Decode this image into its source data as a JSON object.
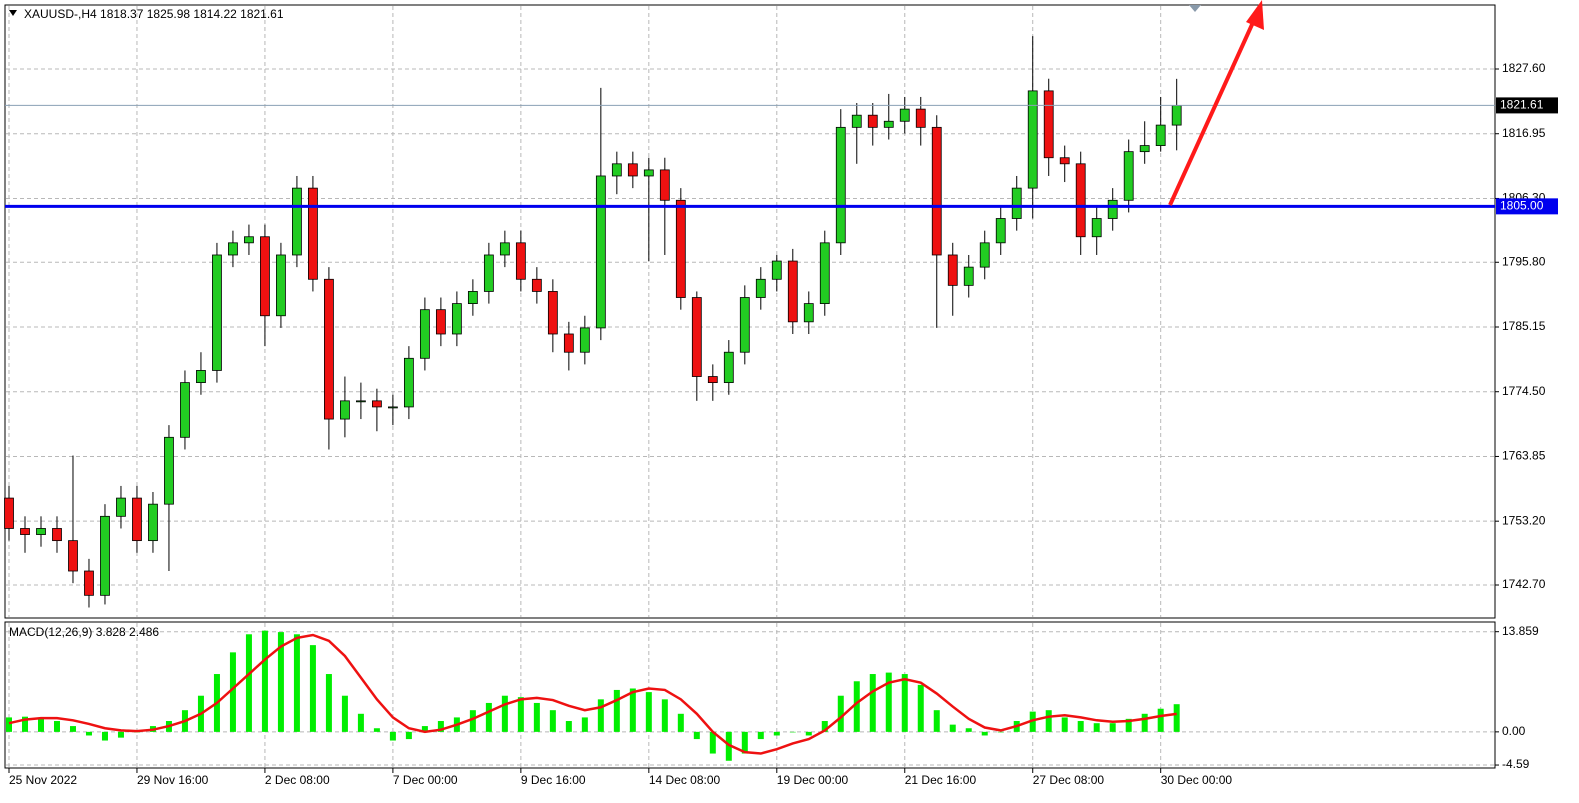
{
  "chart_data": [
    {
      "type": "candlestick",
      "title": "XAUUSD-,H4  1818.37 1825.98 1814.22 1821.61",
      "open": [
        1757,
        1752,
        1751,
        1752,
        1750,
        1745,
        1741,
        1754,
        1757,
        1750,
        1756,
        1767,
        1776,
        1778,
        1797,
        1799,
        1800,
        1787,
        1797,
        1808,
        1793,
        1770,
        1773,
        1773,
        1772,
        1772,
        1780,
        1788,
        1784,
        1789,
        1791,
        1797,
        1799,
        1793,
        1791,
        1784,
        1781,
        1785,
        1810,
        1812,
        1810,
        1811,
        1806,
        1790,
        1777,
        1776,
        1781,
        1790,
        1793,
        1796,
        1786,
        1789,
        1799,
        1818,
        1820,
        1818,
        1819,
        1821,
        1818,
        1797,
        1792,
        1795,
        1799,
        1803,
        1808,
        1824,
        1813,
        1812,
        1800,
        1803,
        1806,
        1814,
        1815,
        1818.37
      ],
      "high": [
        1759,
        1754,
        1754,
        1754,
        1764,
        1747,
        1756,
        1759,
        1759,
        1758,
        1769,
        1778,
        1781,
        1799,
        1801,
        1802,
        1802,
        1799,
        1810,
        1810,
        1795,
        1777,
        1776,
        1775,
        1774,
        1782,
        1790,
        1790,
        1791,
        1793,
        1799,
        1801,
        1801,
        1795,
        1793,
        1786,
        1787,
        1824.5,
        1814,
        1814,
        1813,
        1813,
        1808,
        1791,
        1779,
        1783,
        1792,
        1795,
        1797,
        1798,
        1791,
        1801,
        1821,
        1822,
        1822,
        1823.5,
        1823,
        1823,
        1820,
        1799,
        1797,
        1801,
        1805,
        1810,
        1833,
        1826,
        1815,
        1814,
        1805,
        1808,
        1816,
        1819,
        1823,
        1825.98
      ],
      "low": [
        1750,
        1748,
        1749,
        1748,
        1743,
        1739,
        1739.5,
        1752,
        1748,
        1748,
        1745,
        1765,
        1774,
        1776,
        1795,
        1797,
        1782,
        1785,
        1795,
        1791,
        1765,
        1767,
        1770,
        1768,
        1769,
        1770,
        1778,
        1782,
        1782,
        1787,
        1789,
        1795,
        1791,
        1789,
        1781,
        1778,
        1779,
        1783,
        1807,
        1808,
        1796,
        1797,
        1788,
        1773,
        1773,
        1774,
        1779,
        1788,
        1791,
        1784,
        1784,
        1787,
        1797,
        1812,
        1815,
        1816,
        1817,
        1815,
        1785,
        1787,
        1790,
        1793,
        1797,
        1801,
        1803,
        1810,
        1809,
        1797,
        1797,
        1801,
        1804,
        1812,
        1814,
        1814.22
      ],
      "close": [
        1752,
        1751,
        1752,
        1750,
        1745,
        1741,
        1754,
        1757,
        1750,
        1756,
        1767,
        1776,
        1778,
        1797,
        1799,
        1800,
        1787,
        1797,
        1808,
        1793,
        1770,
        1773,
        1773,
        1772,
        1772,
        1780,
        1788,
        1784,
        1789,
        1791,
        1797,
        1799,
        1793,
        1791,
        1784,
        1781,
        1785,
        1810,
        1812,
        1810,
        1811,
        1806,
        1790,
        1777,
        1776,
        1781,
        1790,
        1793,
        1796,
        1786,
        1789,
        1799,
        1818,
        1820,
        1818,
        1819,
        1821,
        1818,
        1797,
        1792,
        1795,
        1799,
        1803,
        1808,
        1824,
        1813,
        1812,
        1800,
        1803,
        1806,
        1814,
        1815,
        1818.37,
        1821.61
      ],
      "up_color": "#22cc22",
      "down_color": "#ee1111",
      "ylim": [
        1737.27,
        1838.13
      ],
      "yticks": [
        {
          "value": 1827.6,
          "label": "1827.60"
        },
        {
          "value": 1816.95,
          "label": "1816.95"
        },
        {
          "value": 1806.3,
          "label": "1806.30"
        },
        {
          "value": 1795.8,
          "label": "1795.80"
        },
        {
          "value": 1785.15,
          "label": "1785.15"
        },
        {
          "value": 1774.5,
          "label": "1774.50"
        },
        {
          "value": 1763.85,
          "label": "1763.85"
        },
        {
          "value": 1753.2,
          "label": "1753.20"
        },
        {
          "value": 1742.7,
          "label": "1742.70"
        }
      ],
      "xlim": [
        -0.25,
        92.9
      ],
      "xticks": [
        {
          "value": 0,
          "label": "25 Nov 2022"
        },
        {
          "value": 8,
          "label": "29 Nov 16:00"
        },
        {
          "value": 16,
          "label": "2 Dec 08:00"
        },
        {
          "value": 24,
          "label": "7 Dec 00:00"
        },
        {
          "value": 32,
          "label": "9 Dec 16:00"
        },
        {
          "value": 40,
          "label": "14 Dec 08:00"
        },
        {
          "value": 48,
          "label": "19 Dec 00:00"
        },
        {
          "value": 56,
          "label": "21 Dec 16:00"
        },
        {
          "value": 64,
          "label": "27 Dec 08:00"
        },
        {
          "value": 72,
          "label": "30 Dec 00:00"
        }
      ],
      "hline": {
        "value": 1805,
        "label": "1805.00",
        "color": "#0000ee"
      },
      "last_price": {
        "value": 1821.61,
        "label": "1821.61"
      },
      "grid": true
    },
    {
      "type": "bar",
      "title": "MACD(12,26,9) 3.828 2.486",
      "series": [
        {
          "color": "#00ee00",
          "values": [
            2.0,
            2.1,
            1.8,
            1.5,
            0.8,
            -0.5,
            -1.2,
            -0.8,
            0,
            0.8,
            1.5,
            3,
            5,
            8,
            11,
            13.5,
            14,
            13.8,
            13.5,
            12,
            8,
            5,
            2.5,
            0.5,
            -1.2,
            -1,
            0.8,
            1.5,
            2,
            3,
            4,
            5,
            4.8,
            4,
            3,
            1.5,
            2,
            4.5,
            5.8,
            6,
            5.5,
            4.5,
            2.5,
            -1,
            -3,
            -4,
            -3,
            -1,
            -0.5,
            0,
            -0.5,
            1.5,
            5,
            7,
            8,
            8.2,
            8,
            6.5,
            3,
            1,
            0.5,
            -0.5,
            0,
            1.5,
            2.8,
            3,
            2,
            1.5,
            1.2,
            1.2,
            1.8,
            2.5,
            3.2,
            3.828
          ]
        },
        {
          "type": "line",
          "color": "#ee1111",
          "values": [
            1.2,
            1.7,
            1.9,
            1.9,
            1.6,
            1.1,
            0.5,
            0.2,
            0.1,
            0.3,
            0.8,
            1.5,
            2.5,
            4,
            6,
            8,
            10,
            11.8,
            13,
            13.4,
            12.6,
            10.5,
            7.5,
            4.5,
            2,
            0.5,
            0,
            0.3,
            1,
            1.8,
            2.8,
            3.8,
            4.5,
            4.7,
            4.4,
            3.6,
            3,
            3.4,
            4.4,
            5.5,
            6,
            5.8,
            4.5,
            2.5,
            0,
            -1.8,
            -2.8,
            -3,
            -2.4,
            -1.6,
            -1,
            0.2,
            2,
            4,
            5.6,
            6.8,
            7.3,
            6.8,
            5.3,
            3.5,
            1.8,
            0.6,
            0.2,
            0.8,
            1.6,
            2.1,
            2.3,
            2,
            1.6,
            1.4,
            1.5,
            1.8,
            2.2,
            2.486
          ]
        }
      ],
      "ylim": [
        -5.0,
        15.2
      ],
      "yticks": [
        13.859,
        {
          "value": 0,
          "label": "0.00"
        },
        -4.59
      ]
    }
  ]
}
